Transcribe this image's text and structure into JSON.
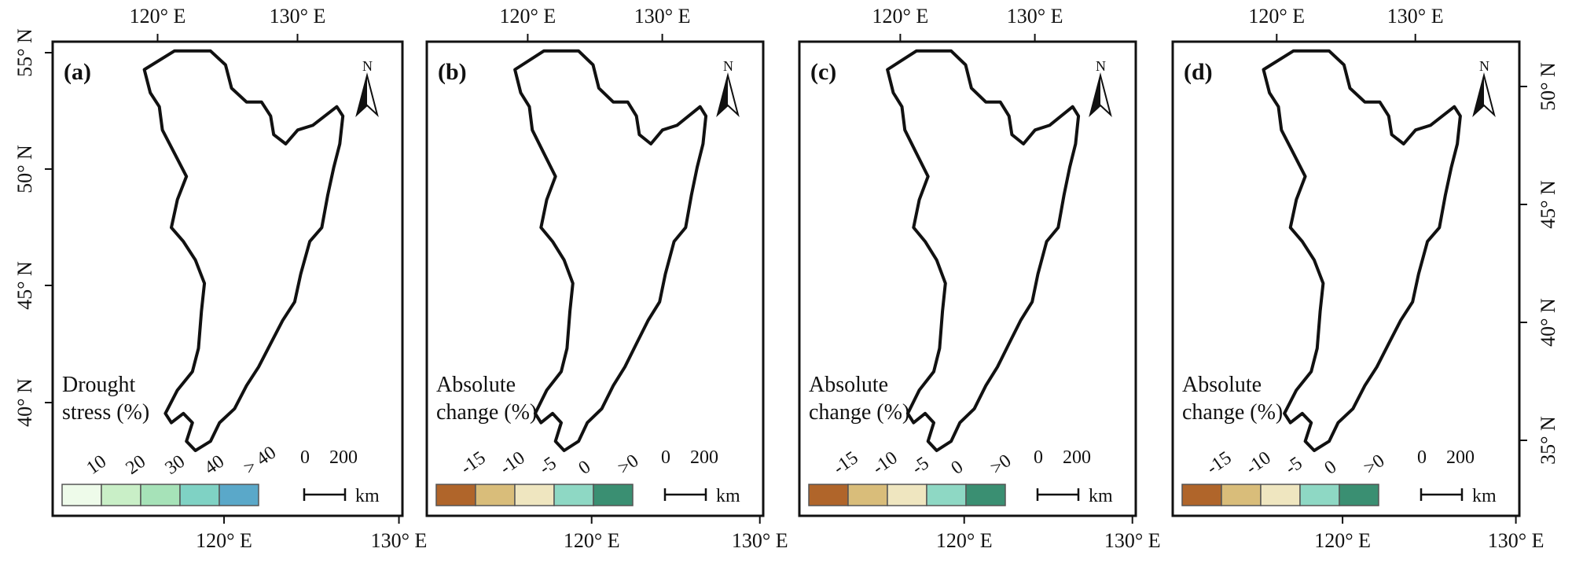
{
  "axes": {
    "top_lon": [
      "120° E",
      "130° E"
    ],
    "bottom_lon": [
      "120° E",
      "130° E"
    ],
    "left_lat": [
      "55° N",
      "50° N",
      "45° N",
      "40° N"
    ],
    "right_lat": [
      "50° N",
      "45° N",
      "40° N",
      "35° N"
    ]
  },
  "panels": [
    {
      "label": "(a)",
      "legend_title_1": "Drought",
      "legend_title_2": "stress (%)",
      "ticks": [
        "10",
        "20",
        "30",
        "40",
        "> 40"
      ],
      "colors": [
        "#eefbea",
        "#c9efc7",
        "#a6e2b8",
        "#7fd2c4",
        "#5aa8c9"
      ],
      "palette": "drought"
    },
    {
      "label": "(b)",
      "legend_title_1": "Absolute",
      "legend_title_2": "change (%)",
      "ticks": [
        "-15",
        "-10",
        "-5",
        "0",
        ">0"
      ],
      "colors": [
        "#b0652a",
        "#d9bd7a",
        "#efe6c0",
        "#8ed8c4",
        "#3a8f72"
      ],
      "palette": "change_b"
    },
    {
      "label": "(c)",
      "legend_title_1": "Absolute",
      "legend_title_2": "change (%)",
      "ticks": [
        "-15",
        "-10",
        "-5",
        "0",
        ">0"
      ],
      "colors": [
        "#b0652a",
        "#d9bd7a",
        "#efe6c0",
        "#8ed8c4",
        "#3a8f72"
      ],
      "palette": "change_c"
    },
    {
      "label": "(d)",
      "legend_title_1": "Absolute",
      "legend_title_2": "change (%)",
      "ticks": [
        "-15",
        "-10",
        "-5",
        "0",
        ">0"
      ],
      "colors": [
        "#b0652a",
        "#d9bd7a",
        "#efe6c0",
        "#8ed8c4",
        "#3a8f72"
      ],
      "palette": "change_d"
    }
  ],
  "north_label": "N",
  "scale": {
    "zero": "0",
    "value": "200",
    "unit": "km"
  }
}
